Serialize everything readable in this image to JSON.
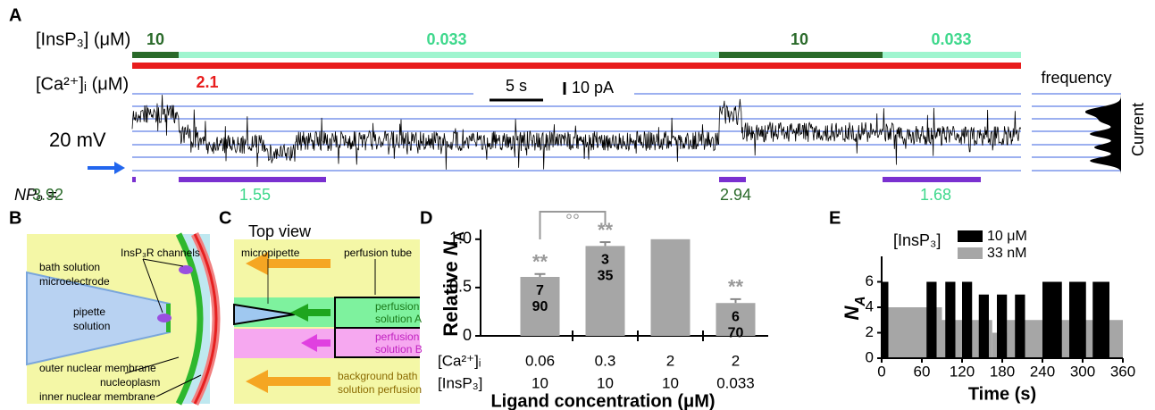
{
  "labels": {
    "a": "A",
    "b": "B",
    "c": "C",
    "d": "D",
    "e": "E"
  },
  "panel_a": {
    "insp3_label": "[InsP₃] (μM)",
    "insp3_values": [
      10,
      0.033,
      10,
      0.033
    ],
    "ca_label": "[Ca²⁺]ᵢ (μM)",
    "ca_value": 2.1,
    "time_scale": "5 s",
    "current_scale": "10 pA",
    "voltage": "20 mV",
    "histogram_label": "frequency",
    "axis_label": "Current",
    "npo_label": "NPₒ =",
    "npo_values": [
      3.92,
      1.55,
      2.94,
      1.68
    ]
  },
  "panel_b": {
    "channels": "InsP₃R channels",
    "bath": "bath solution",
    "electrode": "microelectrode",
    "pipette": [
      "pipette",
      "solution"
    ],
    "outer": "outer nuclear membrane",
    "nucleoplasm": "nucleoplasm",
    "inner": "inner nuclear membrane"
  },
  "panel_c": {
    "title": "Top view",
    "micropipette": "micropipette",
    "tube": "perfusion tube",
    "solution_a": [
      "perfusion",
      "solution A"
    ],
    "solution_b": [
      "perfusion",
      "solution B"
    ],
    "background": [
      "background bath",
      "solution perfusion"
    ]
  },
  "chart_data": [
    {
      "type": "bar",
      "ylabel": [
        "Relative ",
        "N",
        "A"
      ],
      "xlabel": "Ligand concentration (μM)",
      "row_labels": [
        "[Ca²⁺]ᵢ",
        "[InsP₃]"
      ],
      "categories": [
        [
          0.06,
          10
        ],
        [
          0.3,
          10
        ],
        [
          2,
          10
        ],
        [
          2,
          0.033
        ]
      ],
      "values": [
        0.61,
        0.93,
        1.0,
        0.34
      ],
      "errors": [
        0.03,
        0.04,
        null,
        0.04
      ],
      "annotations": [
        "**",
        "**",
        null,
        "**"
      ],
      "counts": [
        [
          7,
          90
        ],
        [
          3,
          35
        ],
        null,
        [
          6,
          70
        ]
      ],
      "bracket_label": "°°",
      "color": "#a6a6a6",
      "ylim": [
        0,
        1.1
      ],
      "yticks": [
        0,
        0.5,
        {
          "value": 1,
          "label": "1.0"
        }
      ]
    },
    {
      "type": "interval_bar",
      "legend_title": "[InsP₃]",
      "xlabel": "Time (s)",
      "ylabel": [
        "N",
        "A"
      ],
      "xlim": [
        0,
        360
      ],
      "xticks": [
        0,
        60,
        120,
        180,
        240,
        300,
        360
      ],
      "ylim": [
        0,
        8
      ],
      "yticks": [
        0,
        2,
        4,
        6
      ],
      "series": [
        {
          "name": "10 μM",
          "color": "#000000",
          "starts": [
            0,
            67,
            95,
            120,
            145,
            172,
            199,
            240,
            280,
            315
          ],
          "ends": [
            10,
            82,
            110,
            135,
            160,
            187,
            214,
            269,
            305,
            340
          ],
          "values": [
            6,
            6,
            6,
            6,
            5,
            5,
            5,
            6,
            6,
            6
          ]
        },
        {
          "name": "33 nM",
          "color": "#a6a6a6",
          "starts": [
            0,
            90,
            165,
            187
          ],
          "ends": [
            90,
            165,
            187,
            360
          ],
          "values": [
            4,
            3,
            2,
            3
          ]
        }
      ]
    }
  ]
}
